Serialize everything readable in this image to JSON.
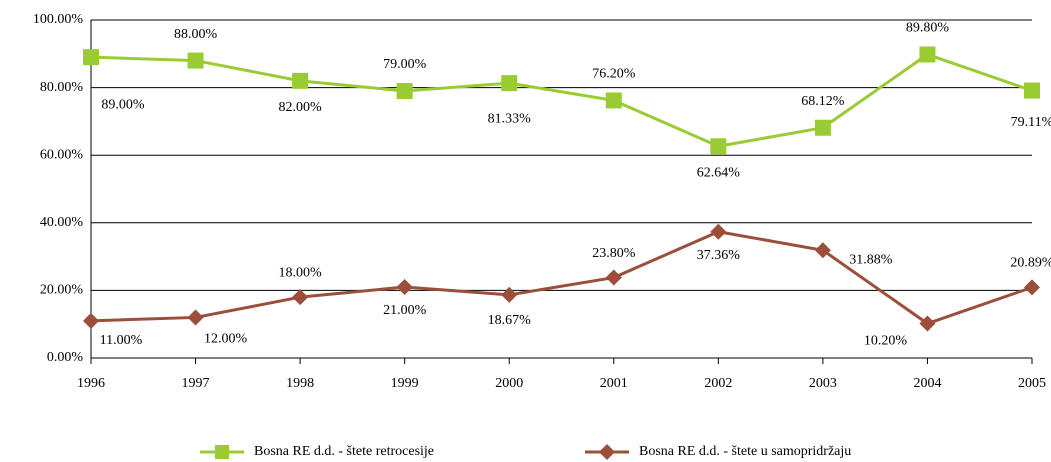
{
  "chart_data": {
    "type": "line",
    "x": [
      1996,
      1997,
      1998,
      1999,
      2000,
      2001,
      2002,
      2003,
      2004,
      2005
    ],
    "xlim": [
      1996,
      2005
    ],
    "ylim": [
      0,
      100
    ],
    "yticks": [
      {
        "value": 0,
        "label": "0.00%"
      },
      {
        "value": 20,
        "label": "20.00%"
      },
      {
        "value": 40,
        "label": "40.00%"
      },
      {
        "value": 60,
        "label": "60.00%"
      },
      {
        "value": 80,
        "label": "80.00%"
      },
      {
        "value": 100,
        "label": "100.00%"
      }
    ],
    "grid": true,
    "legend": "bottom",
    "series": [
      {
        "name": "Bosna RE d.d. - štete retrocesije",
        "color": "#99cc33",
        "marker": "square",
        "values": [
          89,
          88,
          82,
          79,
          81.33,
          76.2,
          62.64,
          68.12,
          89.8,
          79.11
        ],
        "value_labels": [
          "89.00%",
          "88.00%",
          "82.00%",
          "79.00%",
          "81.33%",
          "76.20%",
          "62.64%",
          "68.12%",
          "89.80%",
          "79.11%"
        ]
      },
      {
        "name": "Bosna RE d.d. - štete u samopridržaju",
        "color": "#9b4f3b",
        "marker": "diamond",
        "values": [
          11,
          12,
          18,
          21,
          18.67,
          23.8,
          37.36,
          31.88,
          10.2,
          20.89
        ],
        "value_labels": [
          "11.00%",
          "12.00%",
          "18.00%",
          "21.00%",
          "18.67%",
          "23.80%",
          "37.36%",
          "31.88%",
          "10.20%",
          "20.89%"
        ]
      }
    ]
  }
}
